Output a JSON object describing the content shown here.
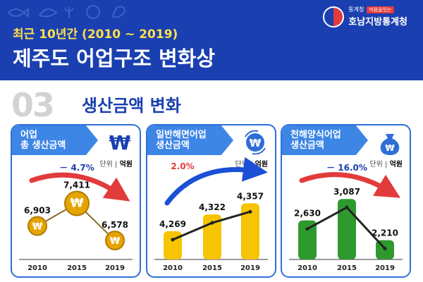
{
  "header": {
    "subtitle": "최근 10년간 (2010 ~ 2019)",
    "title": "제주도 어업구조 변화상",
    "agency_top": "통계청",
    "agency_badge": "마음을잇는",
    "agency_name": "호남지방통계청"
  },
  "section": {
    "number": "03",
    "title": "생산금액 변화"
  },
  "unit_label": "단위",
  "unit_value": "억원",
  "colors": {
    "blue_tag": "#3d86e6",
    "coin_gold": "#e6a400",
    "bar_yellow": "#f6c400",
    "bar_green": "#2e9a2e",
    "arrow_red": "#e23b3b",
    "arrow_blue": "#1a4fd6",
    "header_bg": "#1a3fb0"
  },
  "icons": {
    "panel1": "won-symbol-icon",
    "panel2": "won-coin-exchange-icon",
    "panel3": "money-bag-icon"
  },
  "chart_data": [
    {
      "type": "scatter",
      "title": "어업 총 생산금액",
      "title_lines": [
        "어업",
        "총 생산금액"
      ],
      "categories": [
        "2010",
        "2015",
        "2019"
      ],
      "values": [
        6903,
        7411,
        6578
      ],
      "value_labels": [
        "6,903",
        "7,411",
        "6,578"
      ],
      "change_label": "－ 4.7%",
      "change_direction": "down",
      "unit": "억원"
    },
    {
      "type": "bar",
      "title": "일반해면어업 생산금액",
      "title_lines": [
        "일반해면어업",
        "생산금액"
      ],
      "categories": [
        "2010",
        "2015",
        "2019"
      ],
      "values": [
        4269,
        4322,
        4357
      ],
      "value_labels": [
        "4,269",
        "4,322",
        "4,357"
      ],
      "change_label": "2.0%",
      "change_direction": "up",
      "ylim": [
        4180,
        4380
      ],
      "unit": "억원"
    },
    {
      "type": "bar",
      "title": "천해양식어업 생산금액",
      "title_lines": [
        "천해양식어업",
        "생산금액"
      ],
      "categories": [
        "2010",
        "2015",
        "2019"
      ],
      "values": [
        2630,
        3087,
        2210
      ],
      "value_labels": [
        "2,630",
        "3,087",
        "2,210"
      ],
      "change_label": "－ 16.0%",
      "change_direction": "down",
      "ylim": [
        1800,
        3150
      ],
      "unit": "억원"
    }
  ]
}
